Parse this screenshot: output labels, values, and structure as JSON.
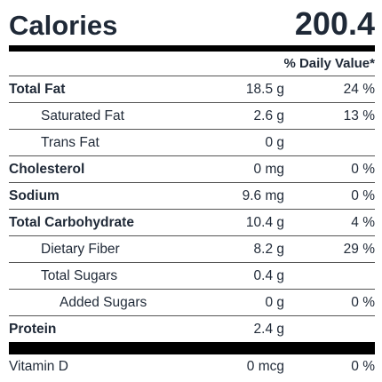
{
  "calories": {
    "label": "Calories",
    "value": "200.4"
  },
  "daily_value_header": "% Daily Value*",
  "nutrients": [
    {
      "name": "Total Fat",
      "amount": "18.5 g",
      "dv": "24 %"
    },
    {
      "name": "Saturated Fat",
      "amount": "2.6 g",
      "dv": "13 %"
    },
    {
      "name": "Trans Fat",
      "amount": "0 g",
      "dv": ""
    },
    {
      "name": "Cholesterol",
      "amount": "0 mg",
      "dv": "0 %"
    },
    {
      "name": "Sodium",
      "amount": "9.6 mg",
      "dv": "0 %"
    },
    {
      "name": "Total Carbohydrate",
      "amount": "10.4 g",
      "dv": "4 %"
    },
    {
      "name": "Dietary Fiber",
      "amount": "8.2 g",
      "dv": "29 %"
    },
    {
      "name": "Total Sugars",
      "amount": "0.4 g",
      "dv": ""
    },
    {
      "name": "Added Sugars",
      "amount": "0 g",
      "dv": "0 %"
    },
    {
      "name": "Protein",
      "amount": "2.4 g",
      "dv": ""
    }
  ],
  "vitamins": [
    {
      "name": "Vitamin D",
      "amount": "0 mcg",
      "dv": "0 %"
    }
  ]
}
